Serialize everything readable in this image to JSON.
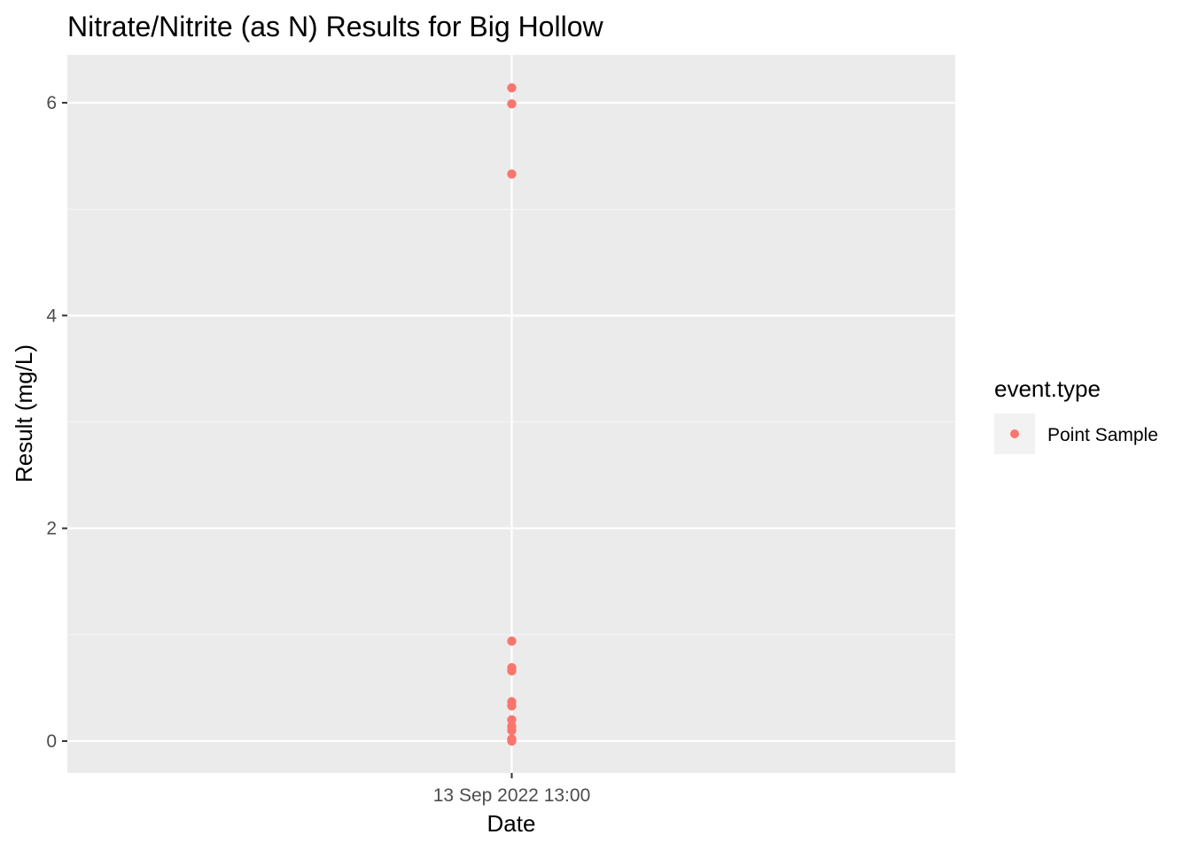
{
  "chart_data": {
    "type": "scatter",
    "title": "Nitrate/Nitrite (as N) Results for Big Hollow",
    "xlabel": "Date",
    "ylabel": "Result (mg/L)",
    "x_tick_labels": [
      "13 Sep 2022 13:00"
    ],
    "y_ticks": [
      0,
      2,
      4,
      6
    ],
    "y_tick_labels": [
      "0",
      "2",
      "4",
      "6"
    ],
    "ylim": [
      -0.3,
      6.45
    ],
    "grid": true,
    "legend": {
      "title": "event.type",
      "placement": "right",
      "entries": [
        {
          "label": "Point Sample",
          "color": "#F8766D"
        }
      ]
    },
    "series": [
      {
        "name": "Point Sample",
        "color": "#F8766D",
        "x": [
          "13 Sep 2022 13:00",
          "13 Sep 2022 13:00",
          "13 Sep 2022 13:00",
          "13 Sep 2022 13:00",
          "13 Sep 2022 13:00",
          "13 Sep 2022 13:00",
          "13 Sep 2022 13:00",
          "13 Sep 2022 13:00",
          "13 Sep 2022 13:00",
          "13 Sep 2022 13:00",
          "13 Sep 2022 13:00",
          "13 Sep 2022 13:00",
          "13 Sep 2022 13:00",
          "13 Sep 2022 13:00"
        ],
        "y": [
          6.14,
          5.99,
          5.33,
          0.94,
          0.69,
          0.66,
          0.37,
          0.33,
          0.2,
          0.14,
          0.1,
          0.02,
          0.01,
          0.0
        ]
      }
    ]
  },
  "colors": {
    "panel_background": "#EBEBEB",
    "grid_major": "#FFFFFF",
    "grid_minor": "#F5F5F5",
    "point": "#F8766D"
  }
}
